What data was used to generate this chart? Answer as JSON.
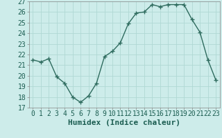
{
  "x": [
    0,
    1,
    2,
    3,
    4,
    5,
    6,
    7,
    8,
    9,
    10,
    11,
    12,
    13,
    14,
    15,
    16,
    17,
    18,
    19,
    20,
    21,
    22,
    23
  ],
  "y": [
    21.5,
    21.3,
    21.6,
    19.9,
    19.3,
    18.0,
    17.5,
    18.1,
    19.3,
    21.8,
    22.3,
    23.1,
    24.9,
    25.9,
    26.0,
    26.7,
    26.5,
    26.7,
    26.7,
    26.7,
    25.3,
    24.1,
    21.5,
    19.6
  ],
  "line_color": "#2e6b5e",
  "marker": "+",
  "marker_size": 4,
  "marker_edge_width": 1.0,
  "bg_color": "#cdecea",
  "grid_color": "#b0d8d4",
  "xlabel": "Humidex (Indice chaleur)",
  "xlim": [
    -0.5,
    23.5
  ],
  "ylim": [
    17,
    27
  ],
  "yticks": [
    17,
    18,
    19,
    20,
    21,
    22,
    23,
    24,
    25,
    26,
    27
  ],
  "xticks": [
    0,
    1,
    2,
    3,
    4,
    5,
    6,
    7,
    8,
    9,
    10,
    11,
    12,
    13,
    14,
    15,
    16,
    17,
    18,
    19,
    20,
    21,
    22,
    23
  ],
  "xtick_labels": [
    "0",
    "1",
    "2",
    "3",
    "4",
    "5",
    "6",
    "7",
    "8",
    "9",
    "10",
    "11",
    "12",
    "13",
    "14",
    "15",
    "16",
    "17",
    "18",
    "19",
    "20",
    "21",
    "22",
    "23"
  ],
  "xlabel_fontsize": 8,
  "tick_fontsize": 7,
  "line_width": 1.0,
  "text_color": "#1a5c50"
}
